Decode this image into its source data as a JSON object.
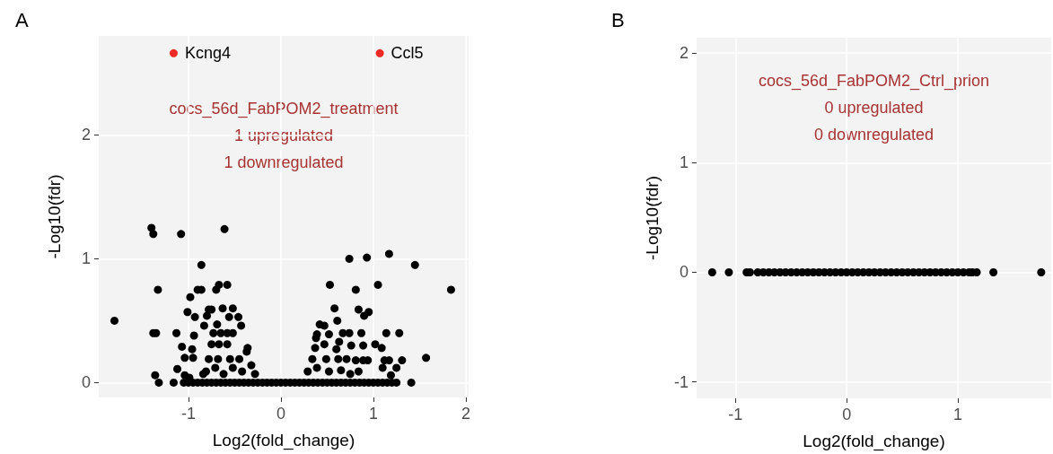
{
  "chart_data": [
    {
      "type": "scatter",
      "title": "A",
      "xlabel": "Log2(fold_change)",
      "ylabel": "-Log10(fdr)",
      "xlim": [
        -1.97,
        2.03
      ],
      "ylim": [
        -0.12,
        2.8
      ],
      "xticks": [
        -1,
        0,
        1,
        2
      ],
      "yticks": [
        0,
        1,
        2
      ],
      "grid": true,
      "marker": "circle",
      "annotations": [
        "cocs_56d_FabPOM2_treatment",
        "1 upregulated",
        "1 downregulated"
      ],
      "series": [
        {
          "color": "#000000",
          "x": [
            -1.8,
            -1.4,
            -1.38,
            -1.08,
            -0.61,
            -0.86,
            -1.33,
            -1.38,
            -1.35,
            -1.36,
            -1.32,
            -1.16,
            -1.13,
            -1.12,
            -1.07,
            -1.04,
            -1.01,
            -0.98,
            -0.9,
            -0.86,
            -0.93,
            -0.83,
            -0.94,
            -0.96,
            -0.95,
            -0.78,
            -0.75,
            -0.8,
            -0.69,
            -0.7,
            -0.67,
            -0.58,
            -0.63,
            -0.52,
            -0.56,
            -0.46,
            -0.43,
            -0.73,
            -0.65,
            -0.58,
            -0.52,
            -0.75,
            -0.67,
            -0.58,
            -0.78,
            -0.68,
            -0.55,
            -0.45,
            -0.36,
            -0.37,
            -0.81,
            -0.71,
            -0.62,
            -0.52,
            -0.42,
            -0.32,
            -0.28,
            -1.04,
            -0.99,
            -0.84,
            1.17,
            0.93,
            0.74,
            1.45,
            1.84,
            0.53,
            0.81,
            1.05,
            0.58,
            0.84,
            0.9,
            0.95,
            0.61,
            0.42,
            0.47,
            0.39,
            0.38,
            0.52,
            0.67,
            0.74,
            0.87,
            1.14,
            1.28,
            0.37,
            0.47,
            0.6,
            0.63,
            0.76,
            0.89,
            1.02,
            1.09,
            1.57,
            0.34,
            0.49,
            0.62,
            0.71,
            0.81,
            0.89,
            0.94,
            1.12,
            1.17,
            1.31,
            1.1,
            1.25,
            1.19,
            1.25,
            1.41,
            0.29,
            0.39,
            0.52,
            0.65,
            0.75,
            0.84,
            -1.05,
            -1.0,
            -0.95,
            -0.9,
            -0.85,
            -0.8,
            -0.75,
            -0.7,
            -0.65,
            -0.6,
            -0.55,
            -0.5,
            -0.45,
            -0.4,
            -0.35,
            -0.3,
            -0.25,
            -0.2,
            -0.15,
            -0.1,
            -0.05,
            0.0,
            0.05,
            0.1,
            0.15,
            0.2,
            0.25,
            0.3,
            0.35,
            0.4,
            0.45,
            0.5,
            0.55,
            0.6,
            0.65,
            0.7,
            0.75,
            0.8,
            0.85,
            0.9,
            0.95,
            1.0,
            1.05,
            1.1,
            1.15,
            1.2
          ],
          "values": [
            0.5,
            1.25,
            1.2,
            1.2,
            1.24,
            0.95,
            0.75,
            0.4,
            0.4,
            0.06,
            0,
            0,
            0.4,
            0.11,
            0.29,
            0.2,
            0.57,
            0.69,
            0.75,
            0.75,
            0.53,
            0.46,
            0.38,
            0.27,
            0.2,
            0.59,
            0.59,
            0.54,
            0.47,
            0.75,
            0.79,
            0.79,
            0.6,
            0.6,
            0.53,
            0.53,
            0.46,
            0.4,
            0.4,
            0.4,
            0.4,
            0.31,
            0.31,
            0.31,
            0.19,
            0.19,
            0.19,
            0.19,
            0.28,
            0.25,
            0.09,
            0.12,
            0.07,
            0.12,
            0.09,
            0.14,
            0.07,
            0.06,
            0.04,
            0.07,
            1.04,
            1.01,
            1.0,
            0.95,
            0.75,
            0.79,
            0.75,
            0.79,
            0.6,
            0.59,
            0.54,
            0.57,
            0.5,
            0.47,
            0.46,
            0.39,
            0.36,
            0.39,
            0.4,
            0.4,
            0.4,
            0.4,
            0.4,
            0.28,
            0.31,
            0.27,
            0.33,
            0.3,
            0.3,
            0.31,
            0.28,
            0.2,
            0.19,
            0.19,
            0.19,
            0.19,
            0.18,
            0.18,
            0.18,
            0.18,
            0.18,
            0.18,
            0.12,
            0.12,
            0.06,
            0,
            0,
            0.09,
            0.12,
            0.09,
            0.1,
            0.07,
            0.09,
            0,
            0,
            0,
            0,
            0,
            0,
            0,
            0,
            0,
            0,
            0,
            0,
            0,
            0,
            0,
            0,
            0,
            0,
            0,
            0,
            0,
            0,
            0,
            0,
            0,
            0,
            0,
            0,
            0,
            0,
            0,
            0,
            0,
            0,
            0,
            0,
            0,
            0,
            0,
            0,
            0,
            0,
            0,
            0,
            0,
            0
          ]
        },
        {
          "color": "#ee2a24",
          "x": [
            -1.16,
            1.07
          ],
          "values": [
            2.66,
            2.66
          ],
          "value_labels": [
            "Kcng4",
            "Ccl5"
          ]
        }
      ]
    },
    {
      "type": "scatter",
      "title": "B",
      "xlabel": "Log2(fold_change)",
      "ylabel": "-Log10(fdr)",
      "xlim": [
        -1.35,
        1.84
      ],
      "ylim": [
        -1.15,
        2.14
      ],
      "xticks": [
        -1,
        0,
        1
      ],
      "yticks": [
        -1,
        0,
        1,
        2
      ],
      "grid": true,
      "marker": "circle",
      "annotations": [
        "cocs_56d_FabPOM2_Ctrl_prion",
        "0 upregulated",
        "0 downregulated"
      ],
      "series": [
        {
          "color": "#000000",
          "x": [
            -1.21,
            -1.06,
            -0.9,
            -0.87,
            -0.8,
            -0.75,
            -0.7,
            -0.65,
            -0.6,
            -0.55,
            -0.5,
            -0.45,
            -0.4,
            -0.35,
            -0.3,
            -0.25,
            -0.2,
            -0.15,
            -0.1,
            -0.05,
            0.0,
            0.05,
            0.1,
            0.15,
            0.2,
            0.25,
            0.3,
            0.35,
            0.4,
            0.45,
            0.5,
            0.55,
            0.6,
            0.65,
            0.7,
            0.75,
            0.8,
            0.85,
            0.9,
            0.95,
            1.0,
            1.05,
            1.1,
            1.13,
            1.17,
            1.32,
            1.75
          ],
          "values": [
            0,
            0,
            0,
            0,
            0,
            0,
            0,
            0,
            0,
            0,
            0,
            0,
            0,
            0,
            0,
            0,
            0,
            0,
            0,
            0,
            0,
            0,
            0,
            0,
            0,
            0,
            0,
            0,
            0,
            0,
            0,
            0,
            0,
            0,
            0,
            0,
            0,
            0,
            0,
            0,
            0,
            0,
            0,
            0,
            0,
            0,
            0
          ]
        }
      ]
    }
  ]
}
